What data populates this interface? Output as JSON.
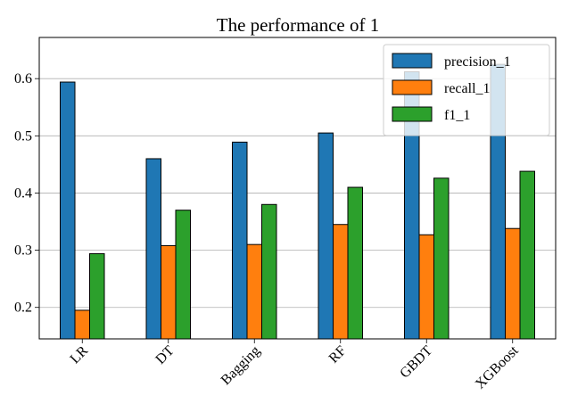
{
  "chart_data": {
    "type": "bar",
    "title": "The performance of 1",
    "xlabel": "",
    "ylabel": "",
    "categories": [
      "LR",
      "DT",
      "Bagging",
      "RF",
      "GBDT",
      "XGBoost"
    ],
    "series": [
      {
        "name": "precision_1",
        "color": "#1f77b4",
        "values": [
          0.594,
          0.46,
          0.489,
          0.505,
          0.612,
          0.625
        ]
      },
      {
        "name": "recall_1",
        "color": "#ff7f0e",
        "values": [
          0.195,
          0.308,
          0.31,
          0.345,
          0.327,
          0.338
        ]
      },
      {
        "name": "f1_1",
        "color": "#2ca02c",
        "values": [
          0.294,
          0.37,
          0.38,
          0.41,
          0.426,
          0.438
        ]
      }
    ],
    "ylim": [
      0.145,
      0.672
    ],
    "yticks": [
      0.2,
      0.3,
      0.4,
      0.5,
      0.6
    ],
    "ytick_labels": [
      "0.2",
      "0.3",
      "0.4",
      "0.5",
      "0.6"
    ],
    "grid": "y",
    "legend": "top-right"
  }
}
